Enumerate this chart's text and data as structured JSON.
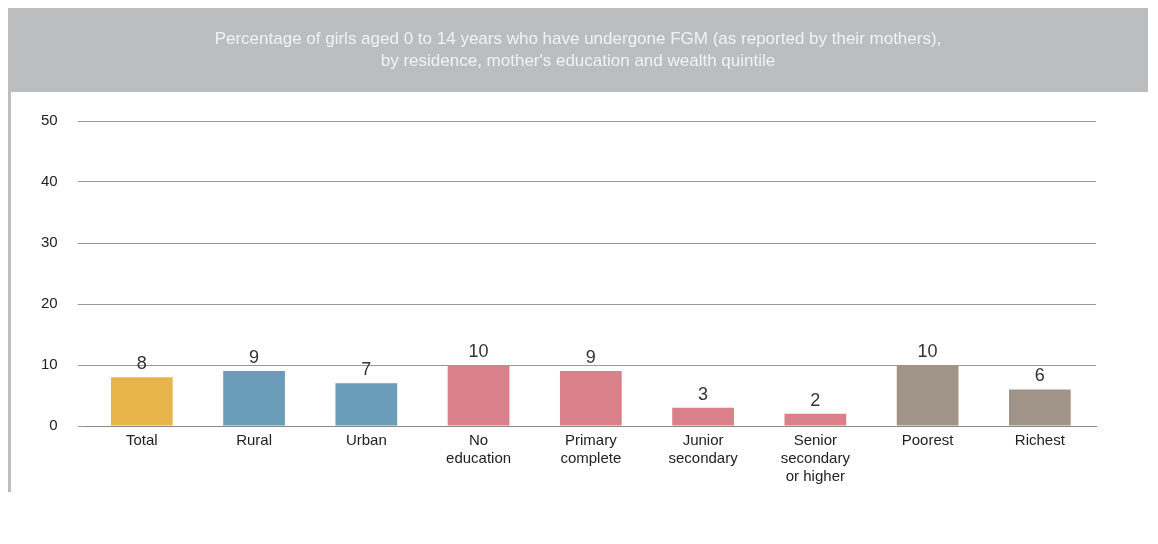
{
  "chart_data": {
    "type": "bar",
    "title": "Percentage of girls aged 0 to 14 years who have undergone FGM (as reported by their mothers), by residence, mother's education and wealth quintile",
    "categories": [
      "Total",
      "Rural",
      "Urban",
      "No education",
      "Primary complete",
      "Junior secondary",
      "Senior secondary or higher",
      "Poorest",
      "Richest"
    ],
    "values": [
      8,
      9,
      7,
      10,
      9,
      3,
      2,
      10,
      6
    ],
    "colors": [
      "#e8b44c",
      "#6b9db8",
      "#6b9db8",
      "#d9808b",
      "#d9808b",
      "#d9808b",
      "#d9808b",
      "#a09488",
      "#a09488"
    ],
    "ylim": [
      0,
      50
    ],
    "yticks": [
      0,
      10,
      20,
      30,
      40,
      50
    ],
    "grid": "y",
    "data_labels": true,
    "legend": false
  }
}
